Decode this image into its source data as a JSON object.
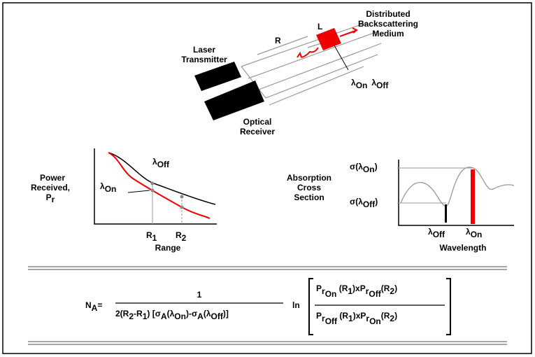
{
  "transmitter": {
    "label": [
      "Laser",
      "Transmitter"
    ]
  },
  "receiver": {
    "label": [
      "Optical",
      "Receiver"
    ]
  },
  "medium": {
    "label": [
      "Distributed",
      "Backscattering",
      "Medium"
    ]
  },
  "range_marker": "R",
  "cell_marker": "L",
  "wavelengths_marker": [
    [
      "λ",
      "On"
    ],
    [
      "λ",
      "Off"
    ]
  ],
  "power_plot": {
    "y_label": [
      "Power",
      "Received,",
      [
        "P",
        "r"
      ]
    ],
    "curve_off": [
      "λ",
      "Off"
    ],
    "curve_on": [
      "λ",
      "On"
    ],
    "r1": [
      "R",
      "1"
    ],
    "r2": [
      "R",
      "2"
    ],
    "x_label": "Range"
  },
  "cross_section_plot": {
    "y_label": [
      "Absorption",
      "Cross",
      "Section"
    ],
    "sigma_on": [
      "σ(λ",
      "On",
      ")"
    ],
    "sigma_off": [
      "σ(λ",
      "Off",
      ")"
    ],
    "x_tick_off": [
      "λ",
      "Off"
    ],
    "x_tick_on": [
      "λ",
      "On"
    ],
    "x_label": "Wavelength"
  },
  "equation": {
    "lhs": [
      "N",
      "A",
      "="
    ],
    "numerator": "1",
    "denominator": [
      "2(R",
      "2",
      "-R",
      "1",
      ")  [σ",
      "A",
      "(λ",
      "On",
      ")-σ",
      "A",
      "(λ",
      "Off",
      ")]"
    ],
    "ln": "ln",
    "top": [
      "P",
      "r",
      "On",
      " (R",
      "1",
      ")xP",
      "r",
      "Off",
      "(R",
      "2",
      ")"
    ],
    "bottom": [
      "P",
      "r",
      "Off",
      " (R",
      "1",
      ")xP",
      "r",
      "On",
      "(R",
      "2",
      ")"
    ]
  }
}
